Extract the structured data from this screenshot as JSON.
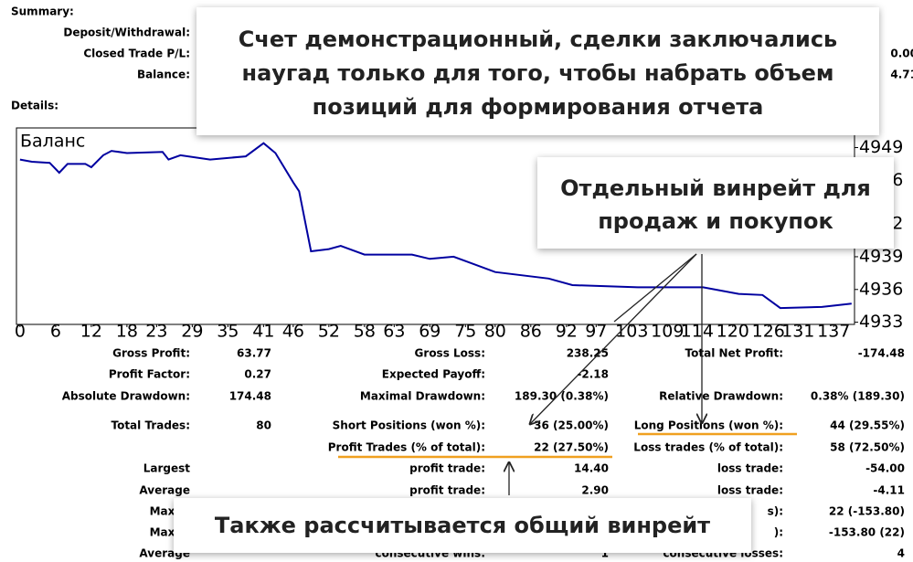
{
  "summary": {
    "title": "Summary:",
    "rows": [
      {
        "label": "Deposit/Withdrawal:"
      },
      {
        "label": "Closed Trade P/L:",
        "value": "0.00"
      },
      {
        "label": "Balance:",
        "value": "4.71"
      }
    ]
  },
  "details": {
    "title": "Details:",
    "rows": [
      [
        "Gross Profit:",
        "63.77",
        "Gross Loss:",
        "238.25",
        "Total Net Profit:",
        "-174.48"
      ],
      [
        "Profit Factor:",
        "0.27",
        "Expected Payoff:",
        "-2.18",
        null,
        null
      ],
      [
        "Absolute Drawdown:",
        "174.48",
        "Maximal Drawdown:",
        "189.30 (0.38%)",
        "Relative Drawdown:",
        "0.38% (189.30)"
      ],
      [
        "Total Trades:",
        "80",
        "Short Positions (won %):",
        "36 (25.00%)",
        "Long Positions (won %):",
        "44 (29.55%)"
      ],
      [
        null,
        null,
        "Profit Trades (% of total):",
        "22 (27.50%)",
        "Loss trades (% of total):",
        "58 (72.50%)"
      ],
      [
        "Largest",
        null,
        "profit trade:",
        "14.40",
        "loss trade:",
        "-54.00"
      ],
      [
        "Average",
        null,
        "profit trade:",
        "2.90",
        "loss trade:",
        "-4.11"
      ],
      [
        "Maxim",
        null,
        null,
        null,
        "s):",
        "22 (-153.80)"
      ],
      [
        "Maxim",
        null,
        null,
        null,
        "):",
        "-153.80 (22)"
      ],
      [
        "Average",
        null,
        "consecutive wins:",
        "1",
        "consecutive losses:",
        "4"
      ]
    ]
  },
  "chart_data": {
    "type": "line",
    "title": "Баланс",
    "x": [
      0,
      2,
      5,
      6.6,
      8,
      11,
      12,
      14,
      15.4,
      18,
      24,
      25,
      27,
      32,
      38,
      41,
      43,
      46,
      47,
      49,
      52,
      54,
      58,
      66,
      69,
      73,
      80,
      89,
      93,
      104,
      115,
      121,
      125,
      128,
      135,
      140
    ],
    "series": [
      {
        "color": "#0000a0",
        "values": [
          4947.9,
          4947.7,
          4947.6,
          4946.7,
          4947.5,
          4947.5,
          4947.2,
          4948.3,
          4948.7,
          4948.5,
          4948.6,
          4947.9,
          4948.3,
          4947.9,
          4948.2,
          4949.4,
          4948.5,
          4945.8,
          4945.0,
          4939.5,
          4939.7,
          4940.0,
          4939.2,
          4939.2,
          4938.8,
          4939.0,
          4937.6,
          4937.0,
          4936.4,
          4936.2,
          4936.2,
          4935.6,
          4935.5,
          4934.3,
          4934.4,
          4934.7
        ]
      }
    ],
    "xlim": [
      -0.6,
      140.5
    ],
    "ylim": [
      4932.8,
      4950.8
    ],
    "xticks": [
      0,
      6,
      12,
      18,
      23,
      29,
      35,
      41,
      46,
      52,
      58,
      63,
      69,
      75,
      80,
      86,
      92,
      97,
      103,
      109,
      114,
      120,
      126,
      131,
      137
    ],
    "yticks": [
      4933,
      4936,
      4939,
      4942,
      4946,
      4949
    ]
  },
  "callouts": [
    {
      "lines": [
        "Счет демонстрационный, сделки заключались",
        "наугад только для того, чтобы набрать объем",
        "позиций для формирования отчета"
      ]
    },
    {
      "lines": [
        "Отдельный винрейт для",
        "продаж и покупок"
      ]
    },
    {
      "lines": [
        "Также рассчитывается общий винрейт"
      ]
    }
  ]
}
